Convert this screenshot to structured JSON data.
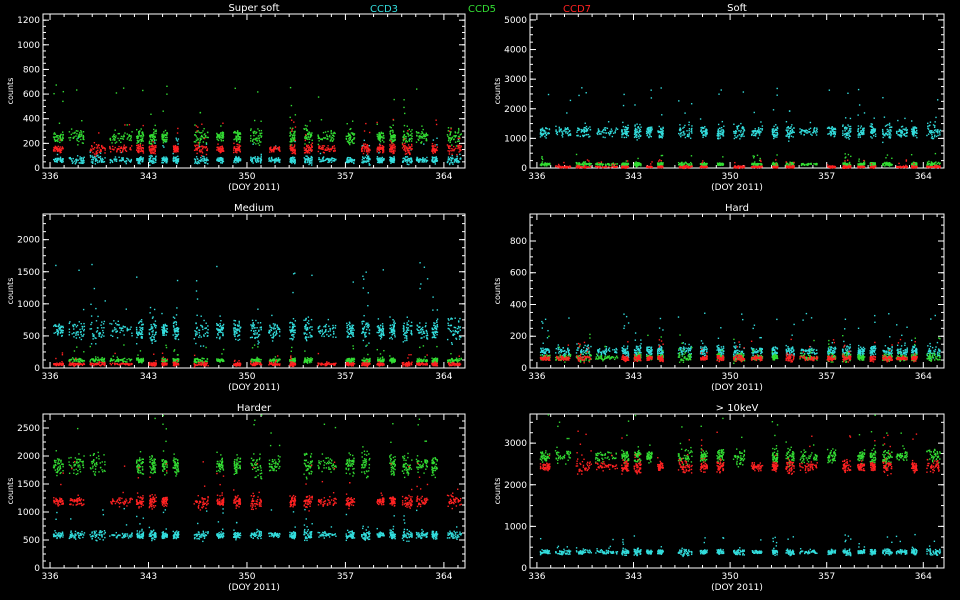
{
  "legend": [
    {
      "name": "CCD3",
      "color": "#33dddd"
    },
    {
      "name": "CCD5",
      "color": "#33dd33"
    },
    {
      "name": "CCD7",
      "color": "#ff2222"
    }
  ],
  "axis_common": {
    "xlabel": "(DOY 2011)",
    "ylabel": "counts",
    "xlim": [
      335.5,
      365.5
    ],
    "xticks": [
      336,
      343,
      350,
      357,
      364
    ]
  },
  "chart_data": [
    {
      "type": "scatter",
      "title": "Super soft",
      "xlabel": "(DOY 2011)",
      "ylabel": "counts",
      "xlim": [
        335.5,
        365.5
      ],
      "ylim": [
        0,
        1250
      ],
      "yticks": [
        0,
        200,
        400,
        600,
        800,
        1000,
        1200
      ],
      "series": [
        {
          "name": "CCD3",
          "color": "#33dddd",
          "level": 70,
          "spread": 30
        },
        {
          "name": "CCD5",
          "color": "#33dd33",
          "level": 260,
          "spread": 70
        },
        {
          "name": "CCD7",
          "color": "#ff2222",
          "level": 160,
          "spread": 40
        }
      ]
    },
    {
      "type": "scatter",
      "title": "Soft",
      "xlabel": "(DOY 2011)",
      "ylabel": "counts",
      "xlim": [
        335.5,
        365.5
      ],
      "ylim": [
        0,
        5200
      ],
      "yticks": [
        0,
        1000,
        2000,
        3000,
        4000,
        5000
      ],
      "series": [
        {
          "name": "CCD3",
          "color": "#33dddd",
          "level": 1250,
          "spread": 250
        },
        {
          "name": "CCD5",
          "color": "#33dd33",
          "level": 150,
          "spread": 60
        },
        {
          "name": "CCD7",
          "color": "#ff2222",
          "level": 60,
          "spread": 40
        }
      ]
    },
    {
      "type": "scatter",
      "title": "Medium",
      "xlabel": "(DOY 2011)",
      "ylabel": "counts",
      "xlim": [
        335.5,
        365.5
      ],
      "ylim": [
        0,
        2400
      ],
      "yticks": [
        0,
        500,
        1000,
        1500,
        2000
      ],
      "series": [
        {
          "name": "CCD3",
          "color": "#33dddd",
          "level": 600,
          "spread": 180
        },
        {
          "name": "CCD5",
          "color": "#33dd33",
          "level": 130,
          "spread": 40
        },
        {
          "name": "CCD7",
          "color": "#ff2222",
          "level": 70,
          "spread": 30
        }
      ]
    },
    {
      "type": "scatter",
      "title": "Hard",
      "xlabel": "(DOY 2011)",
      "ylabel": "counts",
      "xlim": [
        335.5,
        365.5
      ],
      "ylim": [
        0,
        970
      ],
      "yticks": [
        0,
        200,
        400,
        600,
        800
      ],
      "series": [
        {
          "name": "CCD3",
          "color": "#33dddd",
          "level": 110,
          "spread": 40
        },
        {
          "name": "CCD5",
          "color": "#33dd33",
          "level": 70,
          "spread": 25
        },
        {
          "name": "CCD7",
          "color": "#ff2222",
          "level": 65,
          "spread": 20
        }
      ]
    },
    {
      "type": "scatter",
      "title": "Harder",
      "xlabel": "(DOY 2011)",
      "ylabel": "counts",
      "xlim": [
        335.5,
        365.5
      ],
      "ylim": [
        0,
        2750
      ],
      "yticks": [
        0,
        500,
        1000,
        1500,
        2000,
        2500
      ],
      "series": [
        {
          "name": "CCD3",
          "color": "#33dddd",
          "level": 600,
          "spread": 80
        },
        {
          "name": "CCD5",
          "color": "#33dd33",
          "level": 1850,
          "spread": 200
        },
        {
          "name": "CCD7",
          "color": "#ff2222",
          "level": 1200,
          "spread": 120
        }
      ]
    },
    {
      "type": "scatter",
      "title": "> 10keV",
      "xlabel": "(DOY 2011)",
      "ylabel": "counts",
      "xlim": [
        335.5,
        365.5
      ],
      "ylim": [
        0,
        3700
      ],
      "yticks": [
        0,
        1000,
        2000,
        3000
      ],
      "series": [
        {
          "name": "CCD3",
          "color": "#33dddd",
          "level": 400,
          "spread": 70
        },
        {
          "name": "CCD5",
          "color": "#33dd33",
          "level": 2700,
          "spread": 200
        },
        {
          "name": "CCD7",
          "color": "#ff2222",
          "level": 2450,
          "spread": 150
        }
      ]
    }
  ]
}
